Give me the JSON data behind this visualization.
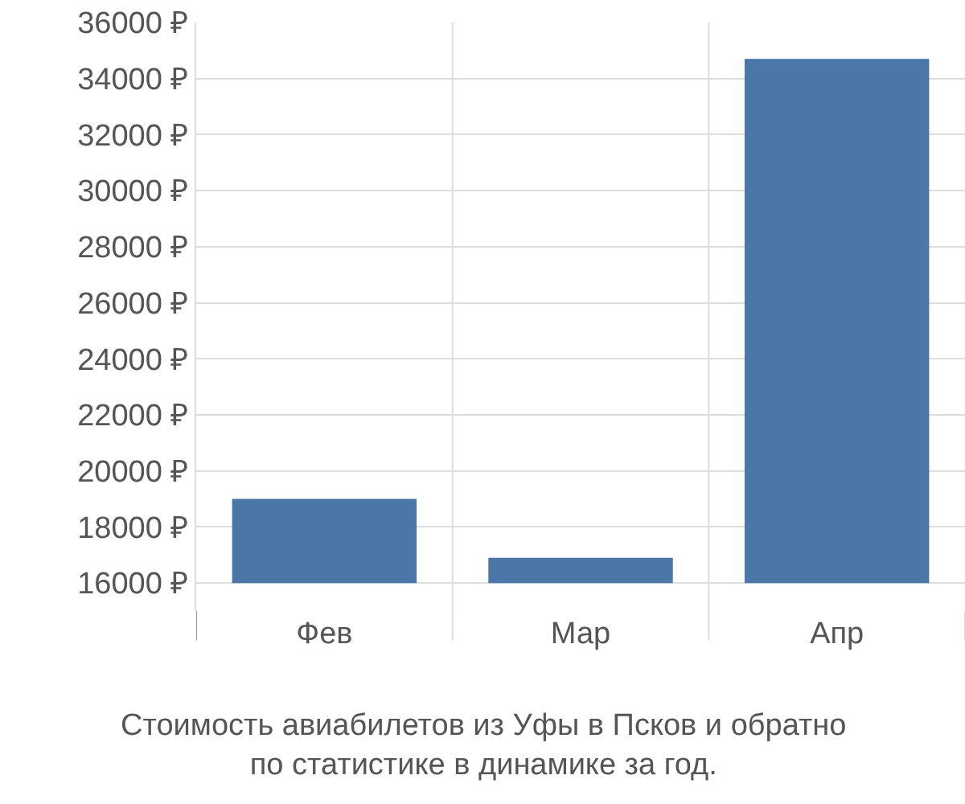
{
  "chart_data": {
    "type": "bar",
    "categories": [
      "Фев",
      "Мар",
      "Апр"
    ],
    "values": [
      3000,
      900,
      18700
    ],
    "base": [
      16000,
      16000,
      16000
    ],
    "color": "#4a77a8",
    "ylim": [
      15000,
      36000
    ],
    "yticks": [
      {
        "value": 16000,
        "label": "16000 ₽"
      },
      {
        "value": 18000,
        "label": "18000 ₽"
      },
      {
        "value": 20000,
        "label": "20000 ₽"
      },
      {
        "value": 22000,
        "label": "22000 ₽"
      },
      {
        "value": 24000,
        "label": "24000 ₽"
      },
      {
        "value": 26000,
        "label": "26000 ₽"
      },
      {
        "value": 28000,
        "label": "28000 ₽"
      },
      {
        "value": 30000,
        "label": "30000 ₽"
      },
      {
        "value": 32000,
        "label": "32000 ₽"
      },
      {
        "value": 34000,
        "label": "34000 ₽"
      },
      {
        "value": 36000,
        "label": "36000 ₽"
      }
    ],
    "grid": true,
    "annotations": [
      "Стоимость авиабилетов из Уфы в Псков и обратно\nпо статистике в динамике за год."
    ]
  }
}
